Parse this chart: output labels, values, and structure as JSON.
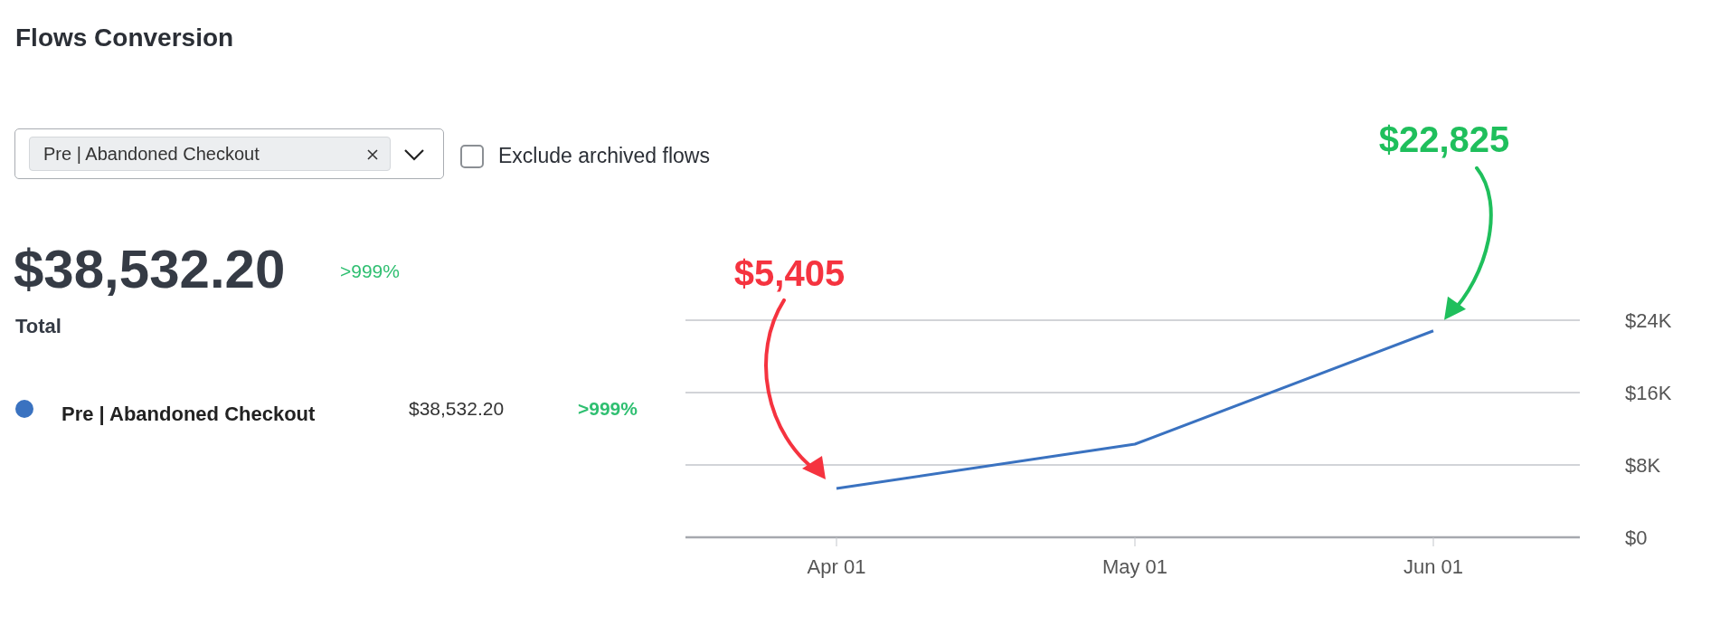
{
  "chart_data": {
    "type": "line",
    "title": "Flows Conversion",
    "categories": [
      "Apr 01",
      "May 01",
      "Jun 01"
    ],
    "series": [
      {
        "name": "Pre | Abandoned Checkout",
        "color": "#3a72c0",
        "values": [
          5405,
          10300,
          22825
        ]
      }
    ],
    "ylim": [
      0,
      24000
    ],
    "yticks": [
      {
        "value": 0,
        "label": "$0"
      },
      {
        "value": 8000,
        "label": "$8K"
      },
      {
        "value": 16000,
        "label": "$16K"
      },
      {
        "value": 24000,
        "label": "$24K"
      }
    ],
    "grid": "y",
    "legend": "left",
    "annotations": [
      "$5,405",
      "$22,825",
      "Pre | Abandoned Checkout",
      "Exclude archived flows",
      "$38,532.20",
      ">999%",
      "Total",
      "$38,532.20",
      ">999%"
    ]
  }
}
